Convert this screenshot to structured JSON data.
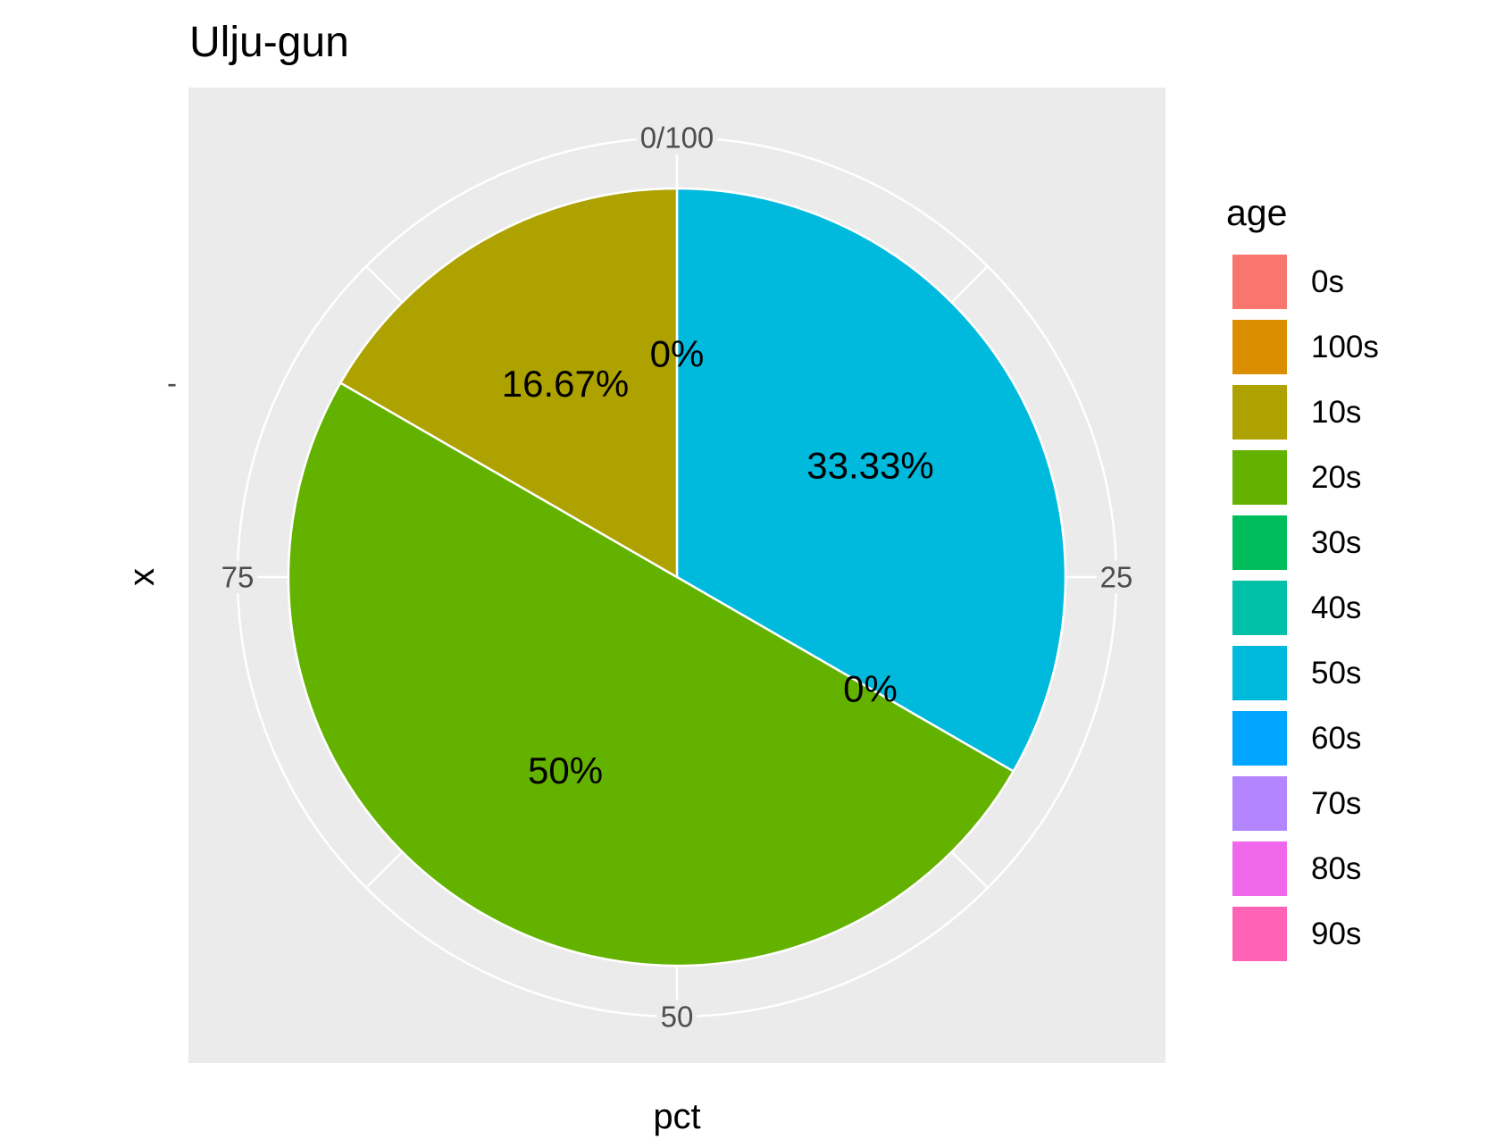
{
  "chart_data": {
    "type": "pie",
    "title": "Ulju-gun",
    "xlabel": "pct",
    "ylabel": "x",
    "y_tick_label": "-",
    "angle_axis": {
      "range": [
        0,
        100
      ],
      "ticks": [
        0,
        25,
        50,
        75
      ],
      "tick_labels": [
        "0/100",
        "25",
        "50",
        "75"
      ]
    },
    "legend": {
      "title": "age",
      "placement": "right",
      "entries": [
        {
          "label": "0s",
          "color": "#F8766D"
        },
        {
          "label": "100s",
          "color": "#DB8E00"
        },
        {
          "label": "10s",
          "color": "#AEA200"
        },
        {
          "label": "20s",
          "color": "#64B200"
        },
        {
          "label": "30s",
          "color": "#00BD5C"
        },
        {
          "label": "40s",
          "color": "#00C1A7"
        },
        {
          "label": "50s",
          "color": "#00BADE"
        },
        {
          "label": "60s",
          "color": "#00A6FF"
        },
        {
          "label": "70s",
          "color": "#B385FF"
        },
        {
          "label": "80s",
          "color": "#EF67EB"
        },
        {
          "label": "90s",
          "color": "#FF63B6"
        }
      ]
    },
    "slices": [
      {
        "category": "50s",
        "value": 33.33,
        "label": "33.33%",
        "color": "#00BADE"
      },
      {
        "category": "40s",
        "value": 0,
        "label": "0%",
        "color": "#00C1A7"
      },
      {
        "category": "20s",
        "value": 50,
        "label": "50%",
        "color": "#64B200"
      },
      {
        "category": "10s",
        "value": 16.67,
        "label": "16.67%",
        "color": "#AEA200"
      },
      {
        "category": "100s",
        "value": 0,
        "label": "0%",
        "color": "#DB8E00"
      }
    ],
    "panel_background": "#EBEBEB",
    "grid": true
  }
}
